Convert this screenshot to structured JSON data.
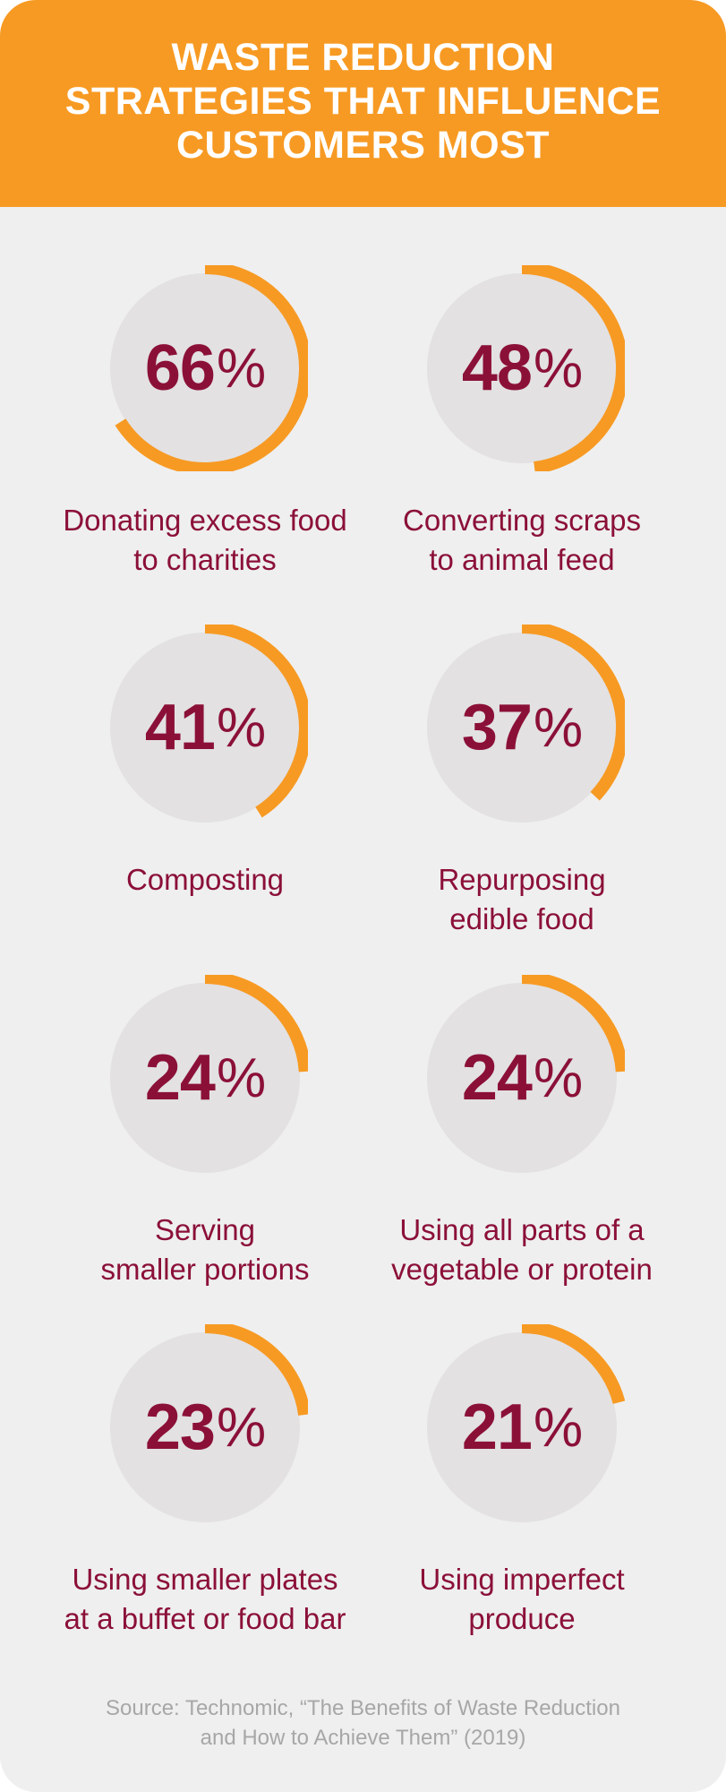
{
  "header": {
    "title": "WASTE REDUCTION\nSTRATEGIES THAT INFLUENCE\nCUSTOMERS MOST"
  },
  "colors": {
    "orange": "#f79a23",
    "maroon": "#8b1038",
    "circle": "#e3e1e2",
    "background": "#efefef",
    "source_text": "#a7a7a7"
  },
  "chart_data": {
    "type": "bar",
    "title": "WASTE REDUCTION STRATEGIES THAT INFLUENCE CUSTOMERS MOST",
    "categories": [
      "Donating excess food to charities",
      "Converting scraps to animal feed",
      "Composting",
      "Repurposing edible food",
      "Serving smaller portions",
      "Using all parts of a vegetable or protein",
      "Using smaller plates at a buffet or food bar",
      "Using imperfect produce"
    ],
    "values": [
      66,
      48,
      41,
      37,
      24,
      24,
      23,
      21
    ],
    "value_labels": [
      "66",
      "48",
      "41",
      "37",
      "24",
      "24",
      "23",
      "21"
    ],
    "unit": "%",
    "ylim": [
      0,
      100
    ],
    "items": [
      {
        "value": 66,
        "label": "Donating excess food\nto charities"
      },
      {
        "value": 48,
        "label": "Converting scraps\nto animal feed"
      },
      {
        "value": 41,
        "label": "Composting"
      },
      {
        "value": 37,
        "label": "Repurposing\nedible food"
      },
      {
        "value": 24,
        "label": "Serving\nsmaller portions"
      },
      {
        "value": 24,
        "label": "Using all parts of a\nvegetable or protein"
      },
      {
        "value": 23,
        "label": "Using smaller plates\nat a buffet or food bar"
      },
      {
        "value": 21,
        "label": "Using imperfect\nproduce"
      }
    ]
  },
  "source": "Source: Technomic, “The Benefits of Waste Reduction\nand How to Achieve Them” (2019)"
}
